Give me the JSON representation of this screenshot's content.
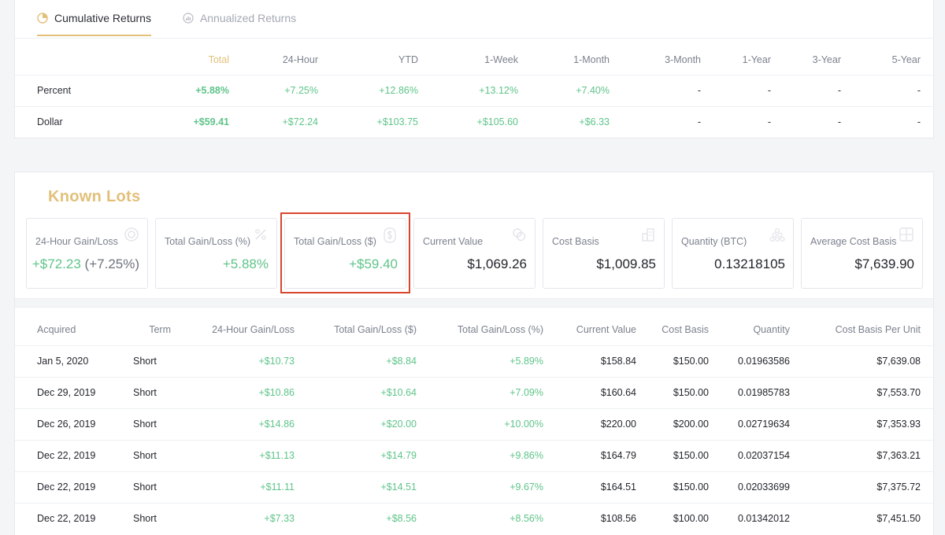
{
  "returns": {
    "tabs": [
      {
        "label": "Cumulative Returns",
        "icon": "pie-chart-icon",
        "active": true
      },
      {
        "label": "Annualized Returns",
        "icon": "bar-gauge-icon",
        "active": false
      }
    ],
    "columns": [
      "Total",
      "24-Hour",
      "YTD",
      "1-Week",
      "1-Month",
      "3-Month",
      "1-Year",
      "3-Year",
      "5-Year"
    ],
    "rows": [
      {
        "label": "Percent",
        "values": [
          "+5.88%",
          "+7.25%",
          "+12.86%",
          "+13.12%",
          "+7.40%",
          "-",
          "-",
          "-",
          "-"
        ]
      },
      {
        "label": "Dollar",
        "values": [
          "+$59.41",
          "+$72.24",
          "+$103.75",
          "+$105.60",
          "+$6.33",
          "-",
          "-",
          "-",
          "-"
        ]
      }
    ]
  },
  "lots": {
    "title": "Known Lots",
    "stats": [
      {
        "label": "24-Hour Gain/Loss",
        "value": "+$72.23",
        "sub": "(+7.25%)",
        "icon": "gauge-icon",
        "positive": true
      },
      {
        "label": "Total Gain/Loss (%)",
        "value": "+5.88%",
        "icon": "percent-icon",
        "positive": true
      },
      {
        "label": "Total Gain/Loss ($)",
        "value": "+$59.40",
        "icon": "dollar-icon",
        "positive": true
      },
      {
        "label": "Current Value",
        "value": "$1,069.26",
        "icon": "coins-icon",
        "positive": false
      },
      {
        "label": "Cost Basis",
        "value": "$1,009.85",
        "icon": "stack-icon",
        "positive": false
      },
      {
        "label": "Quantity (BTC)",
        "value": "0.13218105",
        "icon": "pyramid-icon",
        "positive": false
      },
      {
        "label": "Average Cost Basis",
        "value": "$7,639.90",
        "icon": "calculator-icon",
        "positive": false
      }
    ],
    "columns": [
      "Acquired",
      "Term",
      "24-Hour Gain/Loss",
      "Total Gain/Loss ($)",
      "Total Gain/Loss (%)",
      "Current Value",
      "Cost Basis",
      "Quantity",
      "Cost Basis Per Unit"
    ],
    "rows": [
      [
        "Jan 5, 2020",
        "Short",
        "+$10.73",
        "+$8.84",
        "+5.89%",
        "$158.84",
        "$150.00",
        "0.01963586",
        "$7,639.08"
      ],
      [
        "Dec 29, 2019",
        "Short",
        "+$10.86",
        "+$10.64",
        "+7.09%",
        "$160.64",
        "$150.00",
        "0.01985783",
        "$7,553.70"
      ],
      [
        "Dec 26, 2019",
        "Short",
        "+$14.86",
        "+$20.00",
        "+10.00%",
        "$220.00",
        "$200.00",
        "0.02719634",
        "$7,353.93"
      ],
      [
        "Dec 22, 2019",
        "Short",
        "+$11.13",
        "+$14.79",
        "+9.86%",
        "$164.79",
        "$150.00",
        "0.02037154",
        "$7,363.21"
      ],
      [
        "Dec 22, 2019",
        "Short",
        "+$11.11",
        "+$14.51",
        "+9.67%",
        "$164.51",
        "$150.00",
        "0.02033699",
        "$7,375.72"
      ],
      [
        "Dec 22, 2019",
        "Short",
        "+$7.33",
        "+$8.56",
        "+8.56%",
        "$108.56",
        "$100.00",
        "0.01342012",
        "$7,451.50"
      ]
    ]
  },
  "colors": {
    "accent": "#e2c07a",
    "positive": "#5fc48a",
    "highlight": "#d9452f"
  }
}
